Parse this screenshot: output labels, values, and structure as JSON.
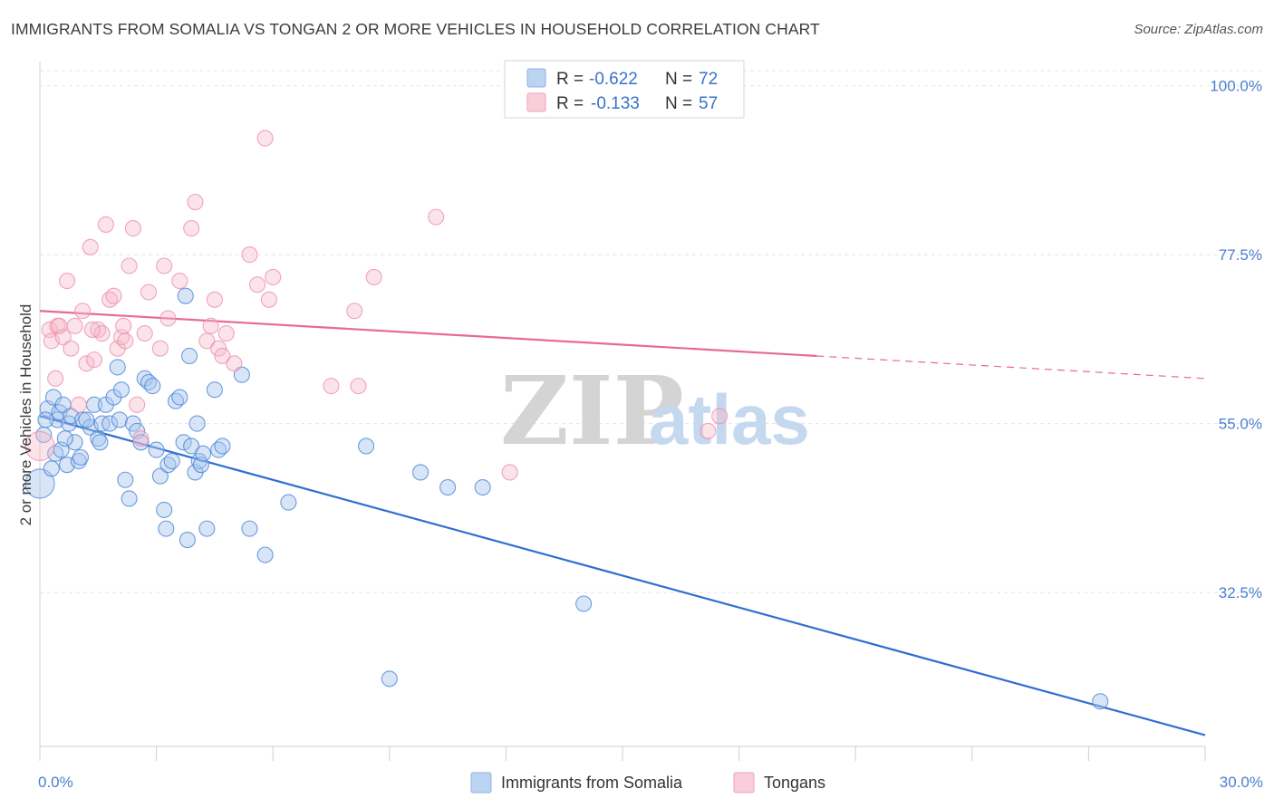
{
  "title": "IMMIGRANTS FROM SOMALIA VS TONGAN 2 OR MORE VEHICLES IN HOUSEHOLD CORRELATION CHART",
  "source": "Source: ZipAtlas.com",
  "watermark": {
    "zip": "ZIP",
    "atlas": "atlas"
  },
  "legend": {
    "rows": [
      {
        "r_label": "R =",
        "r_value": "-0.622",
        "n_label": "N =",
        "n_value": "72",
        "color": "#a9c6ee"
      },
      {
        "r_label": "R =",
        "r_value": "-0.133",
        "n_label": "N =",
        "n_value": "57",
        "color": "#f6b8cb"
      }
    ]
  },
  "bottom_legend": [
    "Immigrants from Somalia",
    "Tongans"
  ],
  "chart_data": {
    "type": "scatter",
    "xlabel": "",
    "ylabel": "2 or more Vehicles in Household",
    "xlim": [
      0,
      30
    ],
    "ylim": [
      12,
      102
    ],
    "x_tick_labels": [
      "0.0%",
      "30.0%"
    ],
    "y_ticks": [
      32.5,
      55.0,
      77.5,
      100.0
    ],
    "y_tick_labels": [
      "32.5%",
      "55.0%",
      "77.5%",
      "100.0%"
    ],
    "grid": true,
    "legend_position": "top-center",
    "colors": {
      "somalia": "#4a86d8",
      "somalia_line": "#2f6fcf",
      "tongan": "#f19ab5",
      "tongan_line": "#e86a93"
    },
    "series": [
      {
        "name": "Immigrants from Somalia",
        "trend": {
          "x": [
            0,
            30
          ],
          "y": [
            56.0,
            13.5
          ],
          "dashed_from": null
        },
        "points": [
          [
            0.0,
            47.0
          ],
          [
            0.1,
            53.5
          ],
          [
            0.2,
            57.0
          ],
          [
            0.35,
            58.5
          ],
          [
            0.4,
            51.0
          ],
          [
            0.45,
            55.5
          ],
          [
            0.5,
            56.5
          ],
          [
            0.6,
            57.5
          ],
          [
            0.7,
            49.5
          ],
          [
            0.75,
            55.0
          ],
          [
            0.8,
            56.0
          ],
          [
            0.9,
            52.5
          ],
          [
            1.0,
            50.0
          ],
          [
            1.05,
            50.5
          ],
          [
            1.1,
            55.5
          ],
          [
            1.3,
            54.5
          ],
          [
            1.4,
            57.5
          ],
          [
            1.5,
            53.0
          ],
          [
            1.6,
            55.0
          ],
          [
            1.7,
            57.5
          ],
          [
            1.8,
            55.0
          ],
          [
            1.9,
            58.5
          ],
          [
            2.0,
            62.5
          ],
          [
            2.05,
            55.5
          ],
          [
            2.2,
            47.5
          ],
          [
            2.3,
            45.0
          ],
          [
            2.4,
            55.0
          ],
          [
            2.5,
            54.0
          ],
          [
            2.6,
            52.5
          ],
          [
            2.7,
            61.0
          ],
          [
            2.8,
            60.5
          ],
          [
            2.9,
            60.0
          ],
          [
            3.0,
            51.5
          ],
          [
            3.1,
            48.0
          ],
          [
            3.2,
            43.5
          ],
          [
            3.25,
            41.0
          ],
          [
            3.3,
            49.5
          ],
          [
            3.4,
            50.0
          ],
          [
            3.5,
            58.0
          ],
          [
            3.6,
            58.5
          ],
          [
            3.7,
            52.5
          ],
          [
            3.75,
            72.0
          ],
          [
            3.8,
            39.5
          ],
          [
            3.85,
            64.0
          ],
          [
            3.9,
            52.0
          ],
          [
            4.0,
            48.5
          ],
          [
            4.05,
            55.0
          ],
          [
            4.1,
            50.0
          ],
          [
            4.15,
            49.5
          ],
          [
            4.2,
            51.0
          ],
          [
            4.3,
            41.0
          ],
          [
            4.5,
            59.5
          ],
          [
            4.6,
            51.5
          ],
          [
            4.7,
            52.0
          ],
          [
            5.2,
            61.5
          ],
          [
            5.4,
            41.0
          ],
          [
            5.8,
            37.5
          ],
          [
            6.4,
            44.5
          ],
          [
            8.4,
            52.0
          ],
          [
            9.0,
            21.0
          ],
          [
            9.8,
            48.5
          ],
          [
            10.5,
            46.5
          ],
          [
            11.4,
            46.5
          ],
          [
            14.0,
            31.0
          ],
          [
            27.3,
            18.0
          ],
          [
            0.15,
            55.5
          ],
          [
            0.3,
            49.0
          ],
          [
            0.55,
            51.5
          ],
          [
            1.2,
            55.5
          ],
          [
            2.1,
            59.5
          ],
          [
            1.55,
            52.5
          ],
          [
            0.65,
            53.0
          ]
        ]
      },
      {
        "name": "Tongans",
        "trend": {
          "x": [
            0,
            20.0,
            30
          ],
          "y": [
            70.0,
            64.0,
            61.0
          ],
          "dashed_from": 20.0
        },
        "points": [
          [
            0.0,
            52.0
          ],
          [
            0.25,
            67.5
          ],
          [
            0.3,
            66.0
          ],
          [
            0.4,
            61.0
          ],
          [
            0.45,
            68.0
          ],
          [
            0.5,
            68.0
          ],
          [
            0.7,
            74.0
          ],
          [
            0.9,
            68.0
          ],
          [
            1.0,
            57.5
          ],
          [
            1.1,
            70.0
          ],
          [
            1.2,
            63.0
          ],
          [
            1.3,
            78.5
          ],
          [
            1.4,
            63.5
          ],
          [
            1.5,
            67.5
          ],
          [
            1.6,
            67.0
          ],
          [
            1.7,
            81.5
          ],
          [
            1.8,
            71.5
          ],
          [
            1.9,
            72.0
          ],
          [
            2.0,
            65.0
          ],
          [
            2.1,
            66.5
          ],
          [
            2.2,
            66.0
          ],
          [
            2.3,
            76.0
          ],
          [
            2.4,
            81.0
          ],
          [
            2.5,
            57.5
          ],
          [
            2.6,
            53.0
          ],
          [
            2.7,
            67.0
          ],
          [
            2.8,
            72.5
          ],
          [
            3.1,
            65.0
          ],
          [
            3.2,
            76.0
          ],
          [
            3.3,
            69.0
          ],
          [
            3.6,
            74.0
          ],
          [
            3.9,
            81.0
          ],
          [
            4.0,
            84.5
          ],
          [
            4.3,
            66.0
          ],
          [
            4.4,
            68.0
          ],
          [
            4.5,
            71.5
          ],
          [
            4.6,
            65.0
          ],
          [
            4.7,
            64.0
          ],
          [
            4.8,
            67.0
          ],
          [
            5.0,
            63.0
          ],
          [
            5.4,
            77.5
          ],
          [
            5.6,
            73.5
          ],
          [
            5.8,
            93.0
          ],
          [
            5.9,
            71.5
          ],
          [
            6.0,
            74.5
          ],
          [
            7.5,
            60.0
          ],
          [
            8.1,
            70.0
          ],
          [
            8.2,
            60.0
          ],
          [
            8.6,
            74.5
          ],
          [
            10.2,
            82.5
          ],
          [
            12.1,
            48.5
          ],
          [
            17.2,
            54.0
          ],
          [
            17.5,
            56.0
          ],
          [
            0.6,
            66.5
          ],
          [
            0.8,
            65.0
          ],
          [
            1.35,
            67.5
          ],
          [
            2.15,
            68.0
          ]
        ]
      }
    ]
  }
}
